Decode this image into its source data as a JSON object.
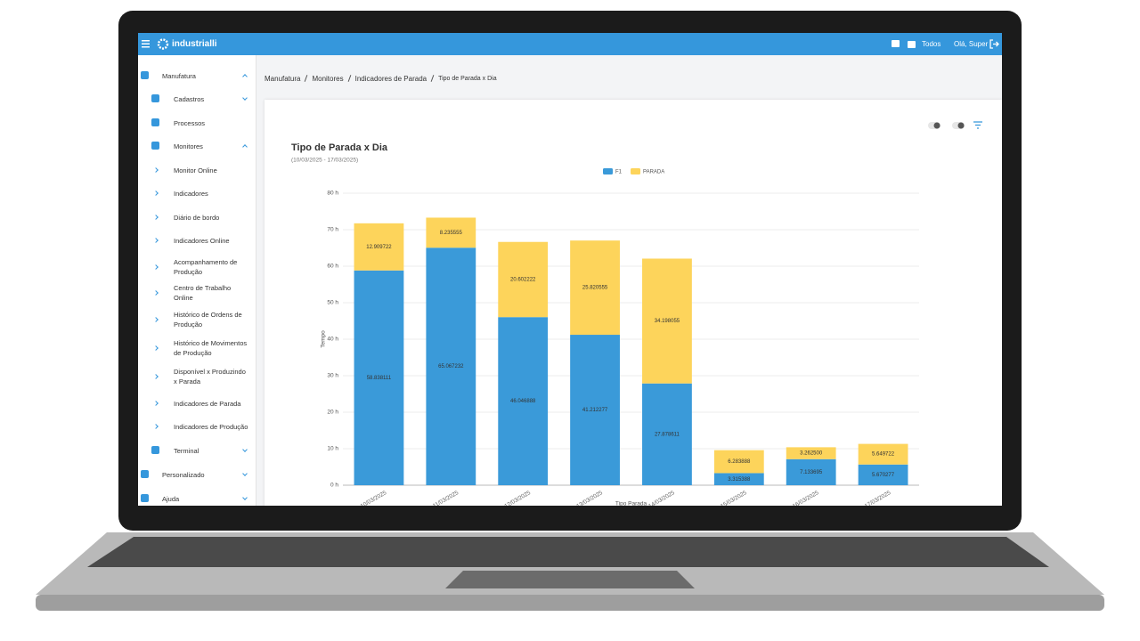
{
  "header": {
    "brand": "industrialli",
    "filter": "Todos",
    "greeting": "Olá, Super"
  },
  "sidebar": {
    "items": [
      "Manufatura",
      "Cadastros",
      "Processos",
      "Monitores",
      "Monitor Online",
      "Indicadores",
      "Diário de bordo",
      "Indicadores Online",
      "Acompanhamento de Produção",
      "Centro de Trabalho Online",
      "Histórico de Ordens de Produção",
      "Histórico de Movimentos de Produção",
      "Disponível x Produzindo x Parada",
      "Indicadores de Parada",
      "Indicadores de Produção",
      "Terminal",
      "Personalizado",
      "Ajuda"
    ]
  },
  "breadcrumb": [
    "Manufatura",
    "Monitores",
    "Indicadores de Parada",
    "Tipo de Parada x Dia"
  ],
  "chart_data": {
    "type": "stacked_bar",
    "title": "Tipo de Parada x Dia",
    "subtitle": "(10/03/2025 - 17/03/2025)",
    "x_label": "Tipo Parada",
    "y_label": "Tempo",
    "categories": [
      "10/03/2025",
      "11/03/2025",
      "12/03/2025",
      "13/03/2025",
      "14/03/2025",
      "15/03/2025",
      "16/03/2025",
      "17/03/2025"
    ],
    "series": [
      {
        "name": "F1",
        "color": "#3a9ad9",
        "values": [
          58.838111,
          65.067232,
          46.046888,
          41.212277,
          27.878611,
          3.315388,
          7.133695,
          5.670277
        ],
        "value_labels": [
          "58.838111",
          "65.067232",
          "46.046888",
          "41.212277",
          "27.878611",
          "3.315388",
          "7.133695",
          "5.670277"
        ]
      },
      {
        "name": "PARADA",
        "color": "#fdd45b",
        "values": [
          12.909722,
          8.235555,
          20.602222,
          25.820555,
          34.198055,
          6.283888,
          3.2625,
          5.649722
        ],
        "value_labels": [
          "12.909722",
          "8.235555",
          "20.602222",
          "25.820555",
          "34.198055",
          "6.283888",
          "3.262500",
          "5.649722"
        ]
      }
    ],
    "ylim": [
      0,
      80
    ],
    "yticks": [
      {
        "value": 0,
        "label": "0 h"
      },
      {
        "value": 10,
        "label": "10 h"
      },
      {
        "value": 20,
        "label": "20 h"
      },
      {
        "value": 30,
        "label": "30 h"
      },
      {
        "value": 40,
        "label": "40 h"
      },
      {
        "value": 50,
        "label": "50 h"
      },
      {
        "value": 60,
        "label": "60 h"
      },
      {
        "value": 70,
        "label": "70 h"
      },
      {
        "value": 80,
        "label": "80 h"
      }
    ],
    "grid": true,
    "legend": "top"
  }
}
